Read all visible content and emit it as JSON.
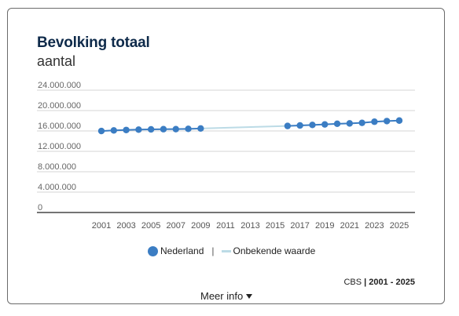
{
  "header": {
    "title": "Bevolking totaal",
    "subtitle": "aantal"
  },
  "chart_data": {
    "type": "line",
    "ylim": [
      0,
      24000000
    ],
    "y_ticks": [
      0,
      4000000,
      8000000,
      12000000,
      16000000,
      20000000,
      24000000
    ],
    "y_tick_labels": [
      "0",
      "4.000.000",
      "8.000.000",
      "12.000.000",
      "16.000.000",
      "20.000.000",
      "24.000.000"
    ],
    "x_tick_labels": [
      "2001",
      "2003",
      "2005",
      "2007",
      "2009",
      "2011",
      "2013",
      "2015",
      "2017",
      "2019",
      "2021",
      "2023",
      "2025"
    ],
    "grid": true,
    "series": [
      {
        "name": "Nederland",
        "color": "#3b7dc3",
        "x": [
          2001,
          2002,
          2003,
          2004,
          2005,
          2006,
          2007,
          2008,
          2009,
          2016,
          2017,
          2018,
          2019,
          2020,
          2021,
          2022,
          2023,
          2024,
          2025
        ],
        "values": [
          15990000,
          16110000,
          16190000,
          16260000,
          16310000,
          16350000,
          16360000,
          16410000,
          16490000,
          16980000,
          17080000,
          17180000,
          17280000,
          17410000,
          17480000,
          17590000,
          17810000,
          17940000,
          18040000
        ]
      },
      {
        "name": "Onbekende waarde",
        "color": "#bcdbe6",
        "x": [
          2009,
          2016
        ],
        "values": [
          16490000,
          16980000
        ]
      }
    ],
    "legend": {
      "position": "bottom",
      "separator": "|"
    }
  },
  "footer": {
    "source_label": "CBS",
    "source_range": "2001 - 2025",
    "more_label": "Meer info"
  }
}
